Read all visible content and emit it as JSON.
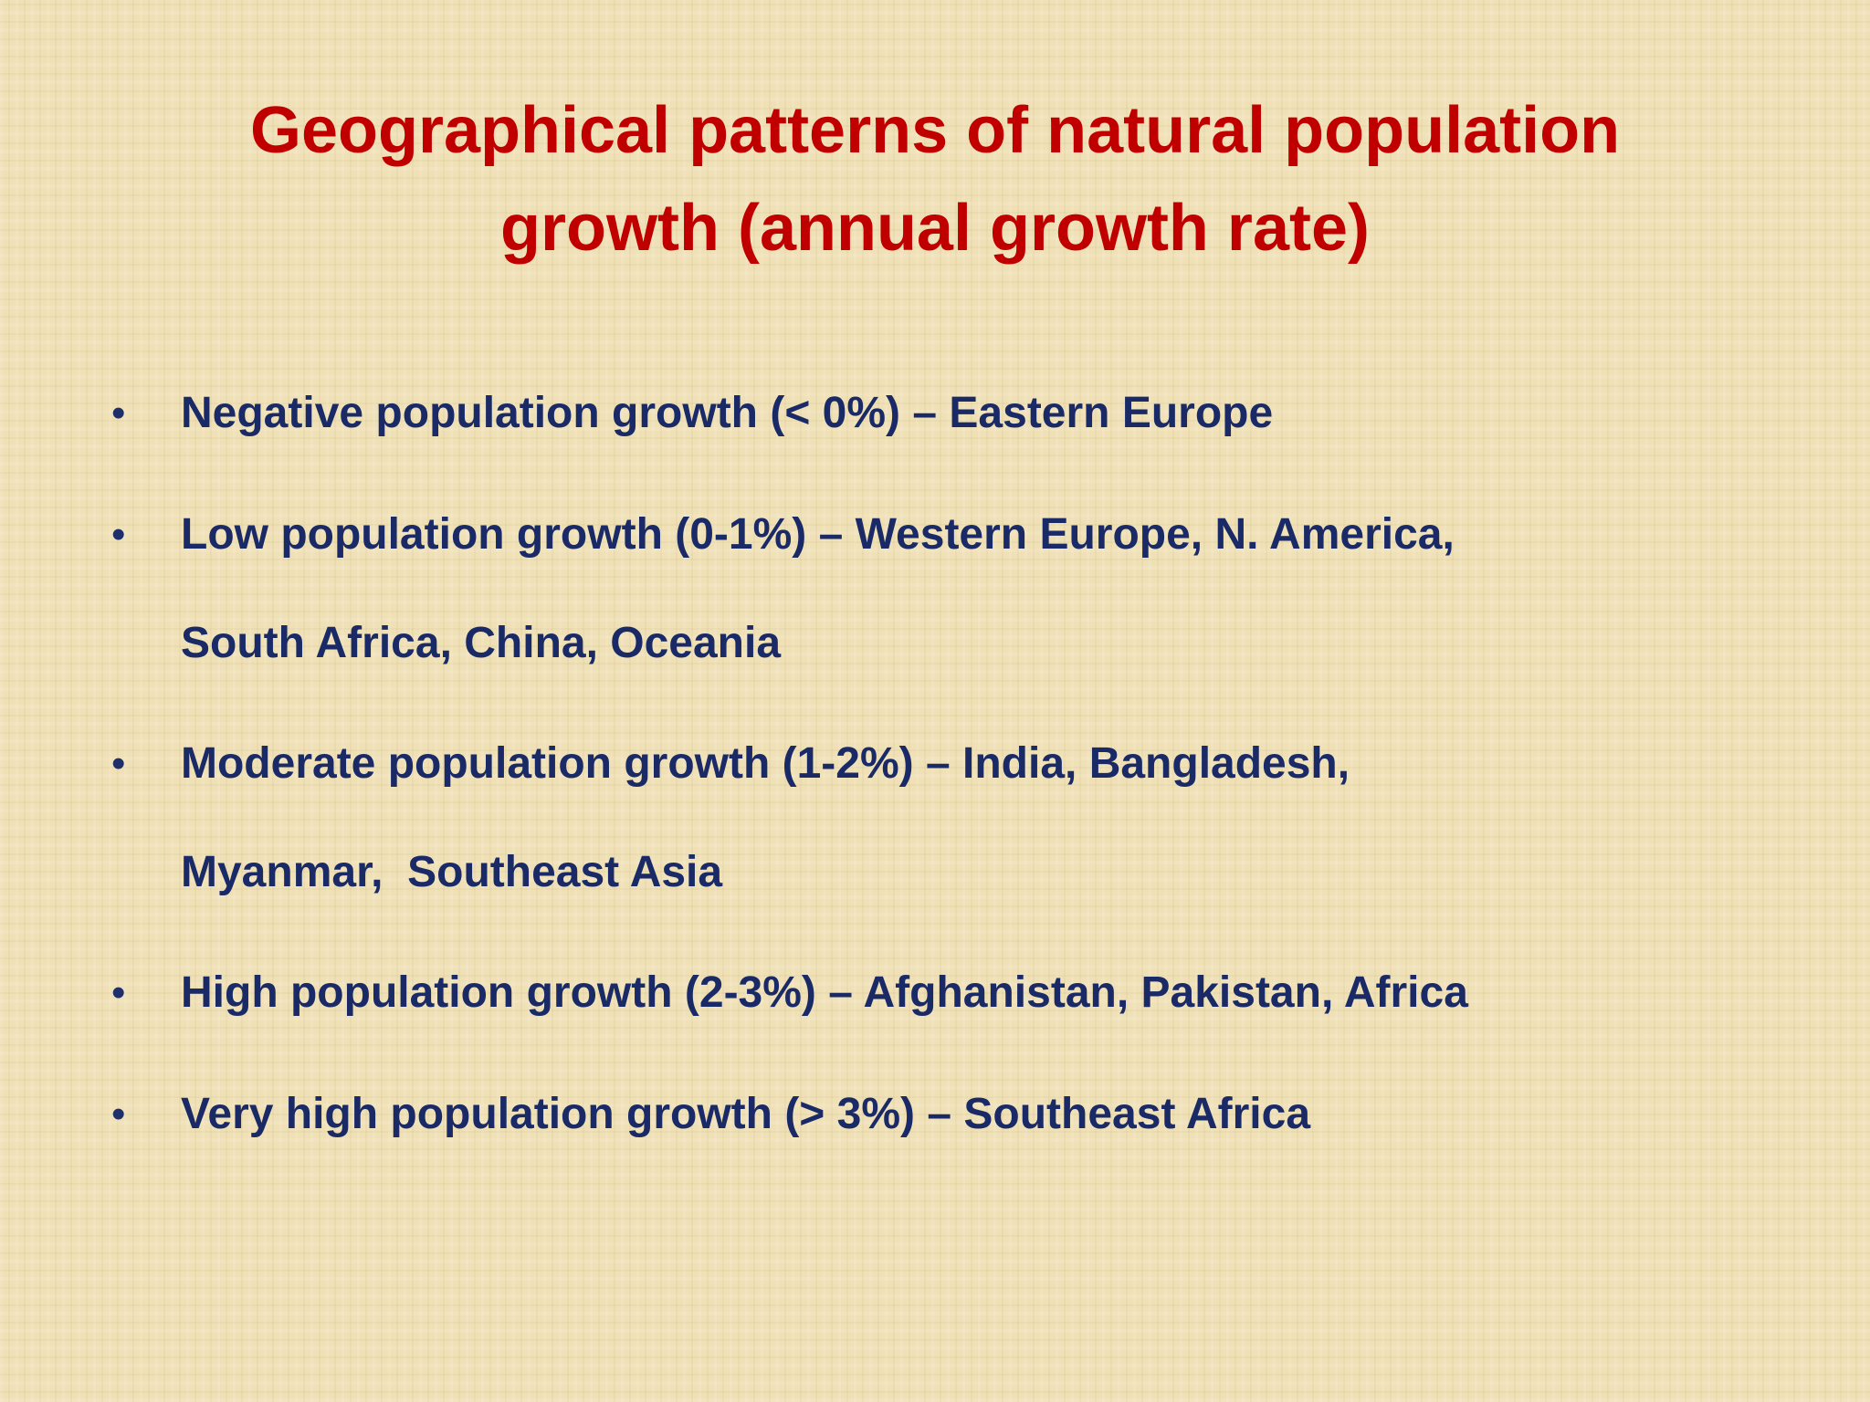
{
  "title": {
    "lines": [
      "Geographical patterns of natural population",
      "growth (annual growth rate)"
    ]
  },
  "bullets": [
    {
      "lines": [
        "Negative population growth (< 0%) – Eastern Europe"
      ]
    },
    {
      "lines": [
        "Low population growth (0-1%) – Western Europe, N. America,",
        "South Africa, China, Oceania"
      ]
    },
    {
      "lines": [
        "Moderate population growth (1-2%) – India, Bangladesh,",
        "Myanmar,  Southeast Asia"
      ]
    },
    {
      "lines": [
        "High population growth (2-3%) – Afghanistan, Pakistan, Africa"
      ]
    },
    {
      "lines": [
        "Very high population growth (> 3%) – Southeast Africa"
      ]
    }
  ]
}
